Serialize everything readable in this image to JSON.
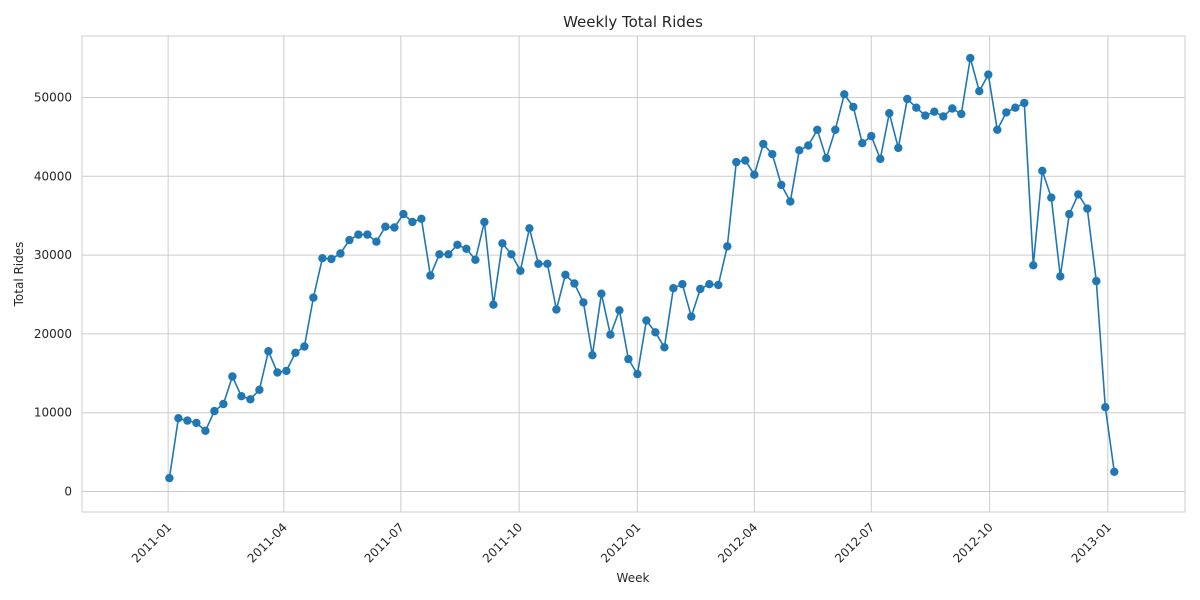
{
  "chart_data": {
    "type": "line",
    "title": "Weekly Total Rides",
    "xlabel": "Week",
    "ylabel": "Total Rides",
    "x_axis": {
      "kind": "date",
      "range": [
        "2010-10-26",
        "2013-03-02"
      ],
      "tick_dates": [
        "2011-01-01",
        "2011-04-01",
        "2011-07-01",
        "2011-10-01",
        "2012-01-01",
        "2012-04-01",
        "2012-07-01",
        "2012-10-01",
        "2013-01-01"
      ],
      "tick_labels": [
        "2011-01",
        "2011-04",
        "2011-07",
        "2011-10",
        "2012-01",
        "2012-04",
        "2012-07",
        "2012-10",
        "2013-01"
      ],
      "tick_rotation_deg": 45
    },
    "y_axis": {
      "range": [
        -2600,
        57800
      ],
      "ticks": [
        0,
        10000,
        20000,
        30000,
        40000,
        50000
      ],
      "tick_labels": [
        "0",
        "10000",
        "20000",
        "30000",
        "40000",
        "50000"
      ]
    },
    "grid": true,
    "marker": "circle",
    "color": "#1f77b4",
    "series": [
      {
        "x": [
          "2011-01-02",
          "2011-01-09",
          "2011-01-16",
          "2011-01-23",
          "2011-01-30",
          "2011-02-06",
          "2011-02-13",
          "2011-02-20",
          "2011-02-27",
          "2011-03-06",
          "2011-03-13",
          "2011-03-20",
          "2011-03-27",
          "2011-04-03",
          "2011-04-10",
          "2011-04-17",
          "2011-04-24",
          "2011-05-01",
          "2011-05-08",
          "2011-05-15",
          "2011-05-22",
          "2011-05-29",
          "2011-06-05",
          "2011-06-12",
          "2011-06-19",
          "2011-06-26",
          "2011-07-03",
          "2011-07-10",
          "2011-07-17",
          "2011-07-24",
          "2011-07-31",
          "2011-08-07",
          "2011-08-14",
          "2011-08-21",
          "2011-08-28",
          "2011-09-04",
          "2011-09-11",
          "2011-09-18",
          "2011-09-25",
          "2011-10-02",
          "2011-10-09",
          "2011-10-16",
          "2011-10-23",
          "2011-10-30",
          "2011-11-06",
          "2011-11-13",
          "2011-11-20",
          "2011-11-27",
          "2011-12-04",
          "2011-12-11",
          "2011-12-18",
          "2011-12-25",
          "2012-01-01",
          "2012-01-08",
          "2012-01-15",
          "2012-01-22",
          "2012-01-29",
          "2012-02-05",
          "2012-02-12",
          "2012-02-19",
          "2012-02-26",
          "2012-03-04",
          "2012-03-11",
          "2012-03-18",
          "2012-03-25",
          "2012-04-01",
          "2012-04-08",
          "2012-04-15",
          "2012-04-22",
          "2012-04-29",
          "2012-05-06",
          "2012-05-13",
          "2012-05-20",
          "2012-05-27",
          "2012-06-03",
          "2012-06-10",
          "2012-06-17",
          "2012-06-24",
          "2012-07-01",
          "2012-07-08",
          "2012-07-15",
          "2012-07-22",
          "2012-07-29",
          "2012-08-05",
          "2012-08-12",
          "2012-08-19",
          "2012-08-26",
          "2012-09-02",
          "2012-09-09",
          "2012-09-16",
          "2012-09-23",
          "2012-09-30",
          "2012-10-07",
          "2012-10-14",
          "2012-10-21",
          "2012-10-28",
          "2012-11-04",
          "2012-11-11",
          "2012-11-18",
          "2012-11-25",
          "2012-12-02",
          "2012-12-09",
          "2012-12-16",
          "2012-12-23",
          "2012-12-30",
          "2013-01-06"
        ],
        "values": [
          1700,
          9300,
          9000,
          8700,
          7700,
          10200,
          11100,
          14600,
          12100,
          11700,
          12900,
          17800,
          15100,
          15300,
          17600,
          18400,
          24600,
          29600,
          29500,
          30200,
          31900,
          32600,
          32600,
          31700,
          33600,
          33500,
          35200,
          34200,
          34600,
          27400,
          30100,
          30100,
          31300,
          30800,
          29400,
          34200,
          23700,
          31500,
          30100,
          28000,
          33400,
          28900,
          28900,
          23100,
          27500,
          26400,
          24000,
          17300,
          25100,
          19900,
          23000,
          16800,
          14900,
          21700,
          20200,
          18300,
          25800,
          26300,
          22200,
          25700,
          26300,
          26200,
          31100,
          41800,
          42000,
          40200,
          44100,
          42800,
          38900,
          36800,
          43300,
          43900,
          45900,
          42300,
          45900,
          50400,
          48800,
          44200,
          45100,
          42200,
          48000,
          43600,
          49800,
          48700,
          47700,
          48200,
          47600,
          48600,
          47900,
          55000,
          50800,
          52900,
          45900,
          48100,
          48700,
          49300,
          28700,
          40700,
          37300,
          27300,
          35200,
          37700,
          35900,
          26700,
          10700,
          2500
        ]
      }
    ]
  }
}
